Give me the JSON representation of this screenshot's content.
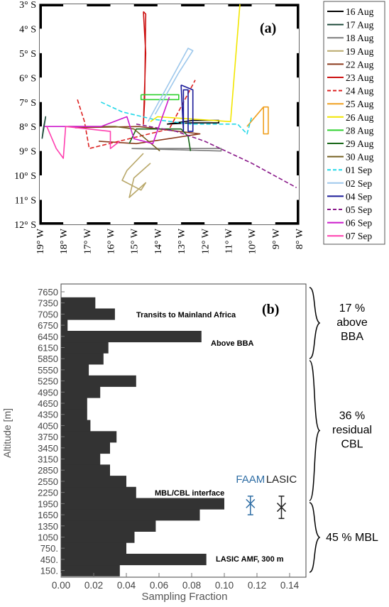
{
  "chart_data": [
    {
      "type": "line",
      "panel_label": "(a)",
      "x_ticks": [
        "19° W",
        "18° W",
        "17° W",
        "16° W",
        "15° W",
        "14° W",
        "13° W",
        "12° W",
        "11° W",
        "10° W",
        "9° W",
        "8° W"
      ],
      "y_ticks": [
        "3° S",
        "4° S",
        "5° S",
        "6° S",
        "7° S",
        "8° S",
        "9° S",
        "10° S",
        "11° S",
        "12° S"
      ],
      "xlim": [
        -19,
        -8
      ],
      "ylim": [
        -12,
        -3
      ],
      "legend_position": "right",
      "series": [
        {
          "name": "16 Aug",
          "color": "#000000",
          "dash": false,
          "x": [
            -13.6,
            -12.5,
            -11.4,
            -11.4,
            -12.6,
            -13.6
          ],
          "y": [
            -7.9,
            -7.75,
            -7.75,
            -7.85,
            -7.85,
            -7.9
          ]
        },
        {
          "name": "17 Aug",
          "color": "#1e4a3a",
          "dash": false,
          "x": [
            -18.9,
            -18.75,
            -18.85,
            -18.9
          ],
          "y": [
            -8.5,
            -7.6,
            -8.1,
            -8.5
          ]
        },
        {
          "name": "18 Aug",
          "color": "#7d7d7d",
          "dash": false,
          "x": [
            -15.1,
            -11.3,
            -11.3,
            -15.1
          ],
          "y": [
            -8.9,
            -8.9,
            -9.0,
            -8.9
          ]
        },
        {
          "name": "19 Aug",
          "color": "#b9a86a",
          "dash": false,
          "x": [
            -14.6,
            -15.3,
            -15.5,
            -14.7,
            -14.5,
            -15.2,
            -15.0,
            -14.3
          ],
          "y": [
            -9.1,
            -9.8,
            -10.2,
            -10.6,
            -10.3,
            -10.9,
            -10.1,
            -9.5
          ]
        },
        {
          "name": "22 Aug",
          "color": "#8b3a1c",
          "dash": false,
          "x": [
            -17.5,
            -14.8,
            -12.2,
            -14.9,
            -16.5
          ],
          "y": [
            -8.05,
            -8.0,
            -8.3,
            -8.7,
            -8.6
          ]
        },
        {
          "name": "23 Aug",
          "color": "#cc1111",
          "dash": false,
          "x": [
            -14.6,
            -14.5,
            -14.55,
            -14.6,
            -14.5,
            -14.6
          ],
          "y": [
            -3.3,
            -3.4,
            -7.0,
            -7.9,
            -5.0,
            -3.3
          ]
        },
        {
          "name": "24 Aug",
          "color": "#dd2222",
          "dash": true,
          "x": [
            -17.4,
            -17.1,
            -16.9,
            -15.2,
            -13.5,
            -12.4
          ],
          "y": [
            -6.9,
            -7.8,
            -8.9,
            -8.5,
            -8.1,
            -6.1
          ]
        },
        {
          "name": "25 Aug",
          "color": "#f0a020",
          "dash": false,
          "x": [
            -9.5,
            -9.3,
            -9.3,
            -9.5,
            -9.5,
            -10.2
          ],
          "y": [
            -7.2,
            -7.2,
            -8.3,
            -8.3,
            -7.2,
            -8.0
          ]
        },
        {
          "name": "26 Aug",
          "color": "#f2e600",
          "dash": false,
          "x": [
            -14.3,
            -14.0,
            -10.9,
            -10.5
          ],
          "y": [
            -7.8,
            -7.6,
            -7.8,
            -3.0
          ]
        },
        {
          "name": "28 Aug",
          "color": "#2ed12e",
          "dash": false,
          "x": [
            -14.7,
            -13.1,
            -13.1,
            -14.7,
            -14.7
          ],
          "y": [
            -6.7,
            -6.7,
            -6.9,
            -6.9,
            -6.7
          ]
        },
        {
          "name": "29 Aug",
          "color": "#166616",
          "dash": false,
          "x": [
            -15.2,
            -14.9,
            -13.0,
            -12.7,
            -12.6
          ],
          "y": [
            -8.7,
            -8.1,
            -8.1,
            -8.4,
            -9.0
          ]
        },
        {
          "name": "30 Aug",
          "color": "#756020",
          "dash": false,
          "x": [
            -17.8,
            -15.8,
            -15.0,
            -13.9
          ],
          "y": [
            -8.0,
            -8.0,
            -8.1,
            -9.0
          ]
        },
        {
          "name": "01 Sep",
          "color": "#22d8e8",
          "dash": true,
          "x": [
            -16.4,
            -15.5,
            -14.2,
            -12.6,
            -10.6,
            -10.2,
            -10.0
          ],
          "y": [
            -7.0,
            -7.4,
            -7.7,
            -7.9,
            -7.9,
            -8.3,
            -7.6
          ]
        },
        {
          "name": "02 Sep",
          "color": "#9ec8ec",
          "dash": false,
          "x": [
            -14.4,
            -12.7,
            -12.5,
            -13.1,
            -14.1
          ],
          "y": [
            -7.8,
            -4.8,
            -4.9,
            -5.8,
            -7.5
          ]
        },
        {
          "name": "04 Sep",
          "color": "#1a1a99",
          "dash": false,
          "x": [
            -13.0,
            -12.9,
            -12.9,
            -12.7,
            -12.7,
            -12.5,
            -12.5,
            -13.0
          ],
          "y": [
            -6.3,
            -8.2,
            -6.5,
            -6.5,
            -8.2,
            -8.2,
            -6.5,
            -6.3
          ]
        },
        {
          "name": "05 Sep",
          "color": "#8a1a8a",
          "dash": true,
          "x": [
            -14.9,
            -13.2,
            -12.0,
            -10.0,
            -8.1
          ],
          "y": [
            -7.9,
            -8.2,
            -8.6,
            -9.5,
            -10.5
          ]
        },
        {
          "name": "06 Sep",
          "color": "#cc1acc",
          "dash": false,
          "x": [
            -18.8,
            -17.6,
            -16.4,
            -15.3,
            -15.0,
            -14.2,
            -13.5
          ],
          "y": [
            -8.0,
            -8.0,
            -8.0,
            -7.6,
            -8.5,
            -8.7,
            -6.8
          ]
        },
        {
          "name": "07 Sep",
          "color": "#ff3faf",
          "dash": false,
          "x": [
            -18.7,
            -18.3,
            -18.0,
            -17.9,
            -16.0,
            -16.0,
            -15.6
          ],
          "y": [
            -8.0,
            -8.9,
            -9.3,
            -8.0,
            -8.2,
            -8.9,
            -8.6
          ]
        }
      ]
    },
    {
      "type": "bar",
      "orientation": "horizontal",
      "panel_label": "(b)",
      "xlabel": "Sampling Fraction",
      "ylabel": "Altitude  [m]",
      "xlim": [
        0,
        0.15
      ],
      "x_ticks": [
        "0.00",
        "0.02",
        "0.04",
        "0.06",
        "0.08",
        "0.10",
        "0.12",
        "0.14"
      ],
      "categories": [
        "150.",
        "450.",
        "750.",
        "1050",
        "1350",
        "1650",
        "1950",
        "2250",
        "2550",
        "2850",
        "3150",
        "3450",
        "3750",
        "4050",
        "4350",
        "4650",
        "4950",
        "5250",
        "5550",
        "5850",
        "6150",
        "6450",
        "6750",
        "7050",
        "7350",
        "7650"
      ],
      "values": [
        0.036,
        0.089,
        0.04,
        0.045,
        0.058,
        0.085,
        0.1,
        0.046,
        0.04,
        0.03,
        0.024,
        0.03,
        0.034,
        0.018,
        0.016,
        0.016,
        0.024,
        0.046,
        0.017,
        0.026,
        0.029,
        0.086,
        0.004,
        0.033,
        0.021,
        0.0
      ],
      "bar_color": "#333333",
      "annotations": {
        "transits": "Transits to Mainland Africa",
        "above_bba": "Above BBA",
        "interface": "MBL/CBL interface",
        "lasic_amf": "LASIC AMF, 300 m"
      },
      "markers": [
        {
          "name": "FAAM",
          "color": "#2e6da4",
          "x": 0.116,
          "y": 1950,
          "y_err_low": 1650,
          "y_err_high": 2150
        },
        {
          "name": "LASIC",
          "color": "#222222",
          "x": 0.135,
          "y": 1850,
          "y_err_low": 1550,
          "y_err_high": 2150
        }
      ],
      "brackets": [
        {
          "pct": "17 %",
          "line1": "above",
          "line2": "BBA",
          "label": "17 % above BBA"
        },
        {
          "pct": "36 %",
          "line1": "residual",
          "line2": "CBL",
          "label": "36 % residual CBL"
        },
        {
          "pct": "45 %",
          "line1": "MBL",
          "line2": "",
          "label": "45 % MBL"
        }
      ]
    }
  ]
}
